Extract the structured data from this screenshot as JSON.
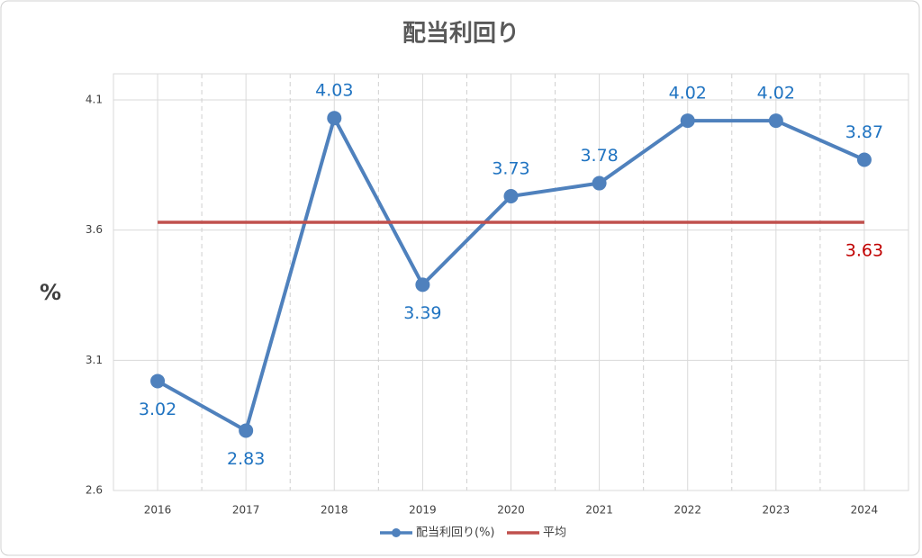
{
  "chart_data": {
    "type": "line",
    "title": "配当利回り",
    "y_label": "%",
    "categories": [
      "2016",
      "2017",
      "2018",
      "2019",
      "2020",
      "2021",
      "2022",
      "2023",
      "2024"
    ],
    "series": [
      {
        "name": "配当利回り(%)",
        "color": "#4f81bd",
        "label_color": "#1f73c1",
        "values": [
          3.02,
          2.83,
          4.03,
          3.39,
          3.73,
          3.78,
          4.02,
          4.02,
          3.87
        ]
      },
      {
        "name": "平均",
        "color": "#c0504d",
        "label_color": "#c00000",
        "values": [
          3.63,
          3.63,
          3.63,
          3.63,
          3.63,
          3.63,
          3.63,
          3.63,
          3.63
        ]
      }
    ],
    "ylim": [
      2.6,
      4.2
    ],
    "yticks": [
      2.6,
      3.1,
      3.6,
      4.1
    ],
    "grid": true,
    "legend": "bottom"
  }
}
